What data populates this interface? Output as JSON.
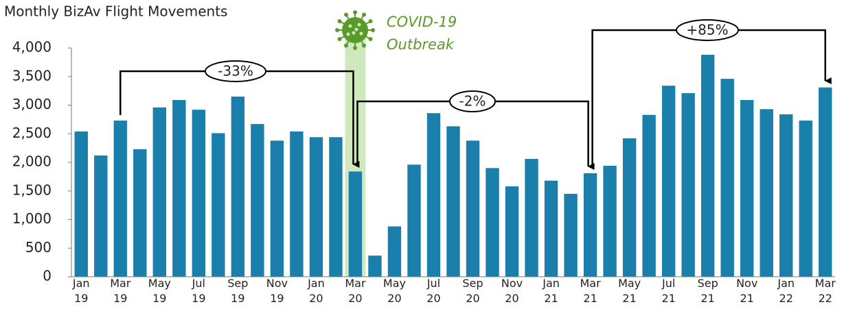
{
  "chart_data": {
    "type": "bar",
    "title": "Monthly BizAv Flight Movements",
    "annotations": [
      "COVID-19",
      "Outbreak",
      "-33%",
      "-2%",
      "+85%"
    ],
    "categories": [
      "Jan 19",
      null,
      "Mar 19",
      null,
      "May 19",
      null,
      "Jul 19",
      null,
      "Sep 19",
      null,
      "Nov 19",
      null,
      "Jan 20",
      null,
      "Mar 20",
      null,
      "May 20",
      null,
      "Jul 20",
      null,
      "Sep 20",
      null,
      "Nov 20",
      null,
      "Jan 21",
      null,
      "Mar 21",
      null,
      "May 21",
      null,
      "Jul 21",
      null,
      "Sep 21",
      null,
      "Nov 21",
      null,
      "Jan 22",
      null,
      "Mar 22"
    ],
    "values": [
      2540,
      2120,
      2730,
      2230,
      2960,
      3090,
      2920,
      2510,
      3150,
      2670,
      2380,
      2540,
      2440,
      2440,
      1840,
      370,
      880,
      1960,
      2860,
      2630,
      2380,
      1900,
      1580,
      2060,
      1680,
      1450,
      1810,
      1940,
      2420,
      2830,
      3340,
      3210,
      3880,
      3460,
      3090,
      2930,
      2840,
      2730,
      3310
    ],
    "color": "#1a7fab",
    "ylim": [
      0,
      4000
    ],
    "yticks": [
      0,
      500,
      {
        "value": 1000,
        "label": "1,000"
      },
      {
        "value": 1500,
        "label": "1,500"
      },
      {
        "value": 2000,
        "label": "2,000"
      },
      {
        "value": 2500,
        "label": "2,500"
      },
      {
        "value": 3000,
        "label": "3,000"
      },
      {
        "value": 3500,
        "label": "3,500"
      },
      {
        "value": 4000,
        "label": "4,000"
      }
    ],
    "grid": false
  }
}
